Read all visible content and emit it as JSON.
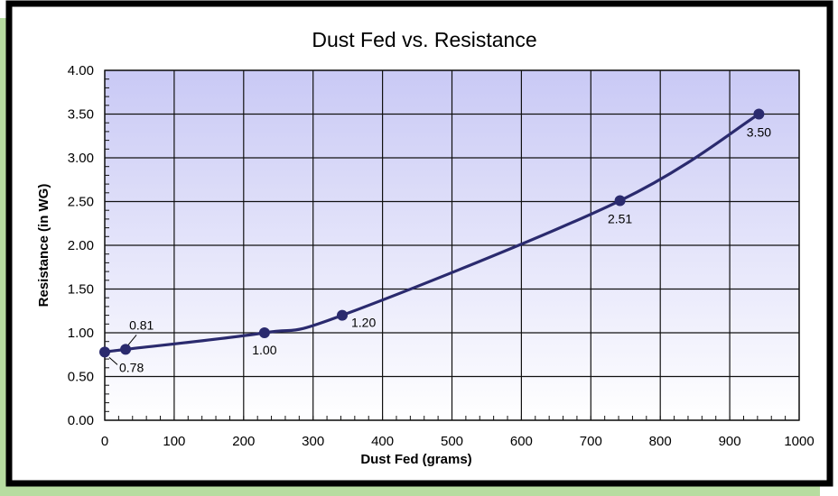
{
  "chart_data": {
    "type": "line",
    "title": "Dust Fed vs. Resistance",
    "xlabel": "Dust Fed (grams)",
    "ylabel": "Resistance (in WG)",
    "xlim": [
      0,
      1000
    ],
    "ylim": [
      0,
      4
    ],
    "grid": true,
    "x_ticks": [
      "0",
      "100",
      "200",
      "300",
      "400",
      "500",
      "600",
      "700",
      "800",
      "900",
      "1000"
    ],
    "y_ticks": [
      "0.00",
      "0.50",
      "1.00",
      "1.50",
      "2.00",
      "2.50",
      "3.00",
      "3.50",
      "4.00"
    ],
    "series": [
      {
        "x": [
          0,
          30,
          230,
          342,
          742,
          942
        ],
        "y": [
          0.78,
          0.81,
          1.0,
          1.2,
          2.51,
          3.5
        ],
        "labels": [
          "0.78",
          "0.81",
          "1.00",
          "1.20",
          "2.51",
          "3.50"
        ]
      }
    ]
  },
  "colors": {
    "series": "#2a2a6e",
    "plot_top": "#c9c9f5",
    "plot_bottom": "#ffffff",
    "accent_strip": "#b7dca0",
    "border": "#000000"
  }
}
